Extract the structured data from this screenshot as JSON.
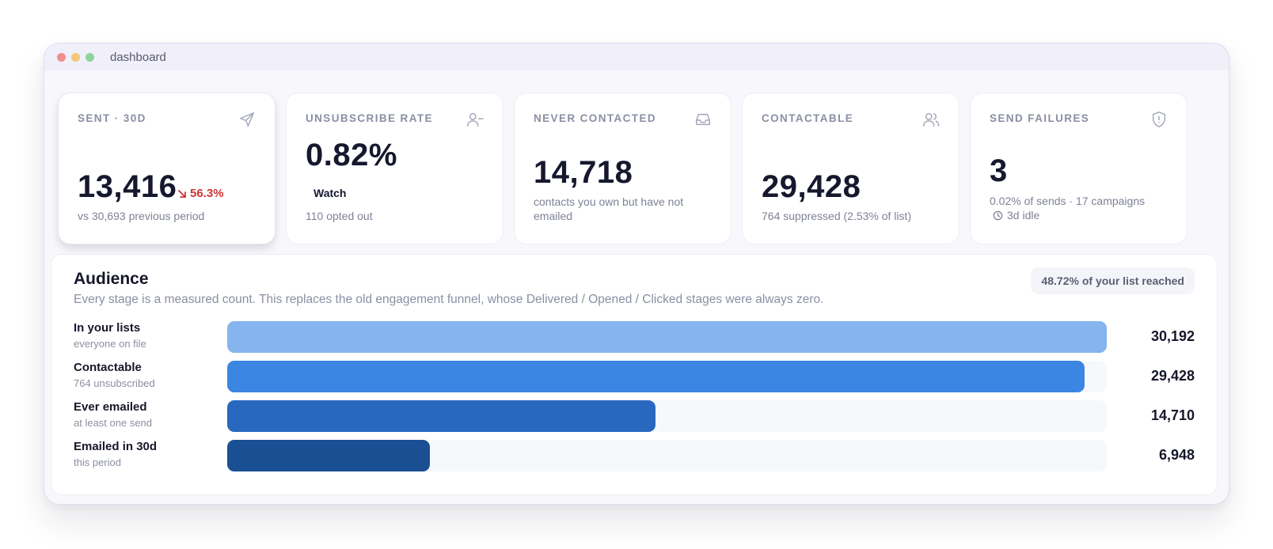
{
  "window": {
    "title": "dashboard"
  },
  "cards": [
    {
      "label": "SENT · 30D",
      "value": "13,416",
      "trend": "56.3%",
      "sub": "vs 30,693 previous period",
      "icon": "send-icon"
    },
    {
      "label": "UNSUBSCRIBE RATE",
      "value": "0.82%",
      "badge": "Watch",
      "sub": "110 opted out",
      "icon": "user-minus-icon"
    },
    {
      "label": "NEVER CONTACTED",
      "value": "14,718",
      "sub": "contacts you own but have not emailed",
      "icon": "inbox-icon"
    },
    {
      "label": "CONTACTABLE",
      "value": "29,428",
      "sub": "764 suppressed (2.53% of list)",
      "icon": "users-icon"
    },
    {
      "label": "SEND FAILURES",
      "value": "3",
      "sub": "0.02% of sends · 17 campaigns",
      "idle": "3d idle",
      "icon": "shield-alert-icon"
    }
  ],
  "audience": {
    "title": "Audience",
    "description": "Every stage is a measured count. This replaces the old engagement funnel, whose Delivered / Opened / Clicked stages were always zero.",
    "reach_badge": "48.72% of your list reached",
    "max": 30192,
    "rows": [
      {
        "label": "In your lists",
        "sub": "everyone on file",
        "value": 30192,
        "display": "30,192",
        "color": "#86b4ee"
      },
      {
        "label": "Contactable",
        "sub": "764 unsubscribed",
        "value": 29428,
        "display": "29,428",
        "color": "#3a86e2"
      },
      {
        "label": "Ever emailed",
        "sub": "at least one send",
        "value": 14710,
        "display": "14,710",
        "color": "#2868bf"
      },
      {
        "label": "Emailed in 30d",
        "sub": "this period",
        "value": 6948,
        "display": "6,948",
        "color": "#1a4f94"
      }
    ]
  },
  "colors": {
    "trend_down": "#cf3434",
    "accent": "#3a86e2"
  }
}
